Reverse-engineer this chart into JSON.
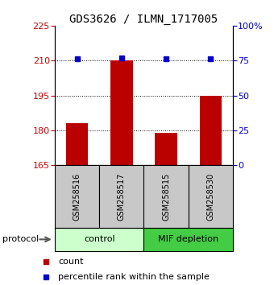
{
  "title": "GDS3626 / ILMN_1717005",
  "samples": [
    "GSM258516",
    "GSM258517",
    "GSM258515",
    "GSM258530"
  ],
  "bar_values": [
    183,
    210,
    179,
    195
  ],
  "percentile_values": [
    76,
    77,
    76,
    76
  ],
  "bar_color": "#bb0000",
  "dot_color": "#0000cc",
  "ylim_left": [
    165,
    225
  ],
  "ylim_right": [
    0,
    100
  ],
  "yticks_left": [
    165,
    180,
    195,
    210,
    225
  ],
  "yticks_right": [
    0,
    25,
    50,
    75,
    100
  ],
  "ytick_labels_right": [
    "0",
    "25",
    "50",
    "75",
    "100%"
  ],
  "gridlines": [
    180,
    195,
    210
  ],
  "control_color": "#ccffcc",
  "mif_color": "#44cc44",
  "protocol_label": "protocol",
  "legend_count_label": "count",
  "legend_percentile_label": "percentile rank within the sample",
  "bar_width": 0.5,
  "sample_box_color": "#c8c8c8",
  "title_fontsize": 10,
  "tick_fontsize": 8,
  "legend_fontsize": 8
}
